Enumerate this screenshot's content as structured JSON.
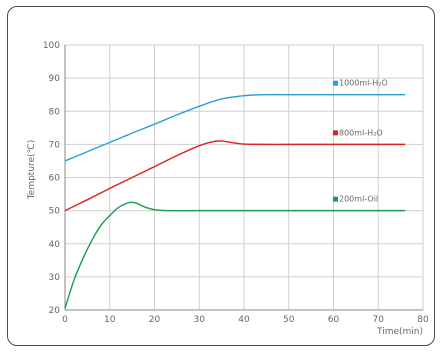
{
  "chart_data": {
    "type": "line",
    "xlabel": "Time(min)",
    "ylabel": "Tempture(℃)",
    "xlim": [
      0,
      80
    ],
    "ylim": [
      20,
      100
    ],
    "x_ticks": [
      0,
      10,
      20,
      30,
      40,
      50,
      60,
      70,
      80
    ],
    "y_ticks": [
      20,
      30,
      40,
      50,
      60,
      70,
      80,
      90,
      100
    ],
    "grid": true,
    "legend_placement": "inline-right",
    "series": [
      {
        "name": "1000ml-H₂O",
        "color": "#2a9fd6",
        "points": [
          [
            0,
            65
          ],
          [
            5,
            67.8
          ],
          [
            10,
            70.6
          ],
          [
            15,
            73.4
          ],
          [
            20,
            76.1
          ],
          [
            25,
            78.9
          ],
          [
            30,
            81.5
          ],
          [
            35,
            83.7
          ],
          [
            40,
            84.7
          ],
          [
            45,
            85
          ],
          [
            50,
            85
          ],
          [
            55,
            85
          ],
          [
            60,
            85
          ],
          [
            65,
            85
          ],
          [
            70,
            85
          ],
          [
            76,
            85
          ]
        ]
      },
      {
        "name": "800ml-H₂O",
        "color": "#e02020",
        "points": [
          [
            0,
            50
          ],
          [
            5,
            53.3
          ],
          [
            10,
            56.7
          ],
          [
            15,
            60
          ],
          [
            20,
            63.3
          ],
          [
            25,
            66.6
          ],
          [
            30,
            69.6
          ],
          [
            33,
            70.8
          ],
          [
            35,
            71
          ],
          [
            38,
            70.4
          ],
          [
            40,
            70.1
          ],
          [
            45,
            70
          ],
          [
            50,
            70
          ],
          [
            60,
            70
          ],
          [
            70,
            70
          ],
          [
            76,
            70
          ]
        ]
      },
      {
        "name": "200ml-Oil",
        "color": "#1a9d4b",
        "points": [
          [
            0,
            20.5
          ],
          [
            2,
            29
          ],
          [
            4,
            35.5
          ],
          [
            6,
            41
          ],
          [
            8,
            45.5
          ],
          [
            10,
            48.5
          ],
          [
            12,
            51
          ],
          [
            14,
            52.3
          ],
          [
            15,
            52.5
          ],
          [
            16,
            52.2
          ],
          [
            18,
            51
          ],
          [
            20,
            50.3
          ],
          [
            23,
            50
          ],
          [
            30,
            50
          ],
          [
            40,
            50
          ],
          [
            50,
            50
          ],
          [
            60,
            50
          ],
          [
            70,
            50
          ],
          [
            76,
            50
          ]
        ]
      }
    ]
  }
}
